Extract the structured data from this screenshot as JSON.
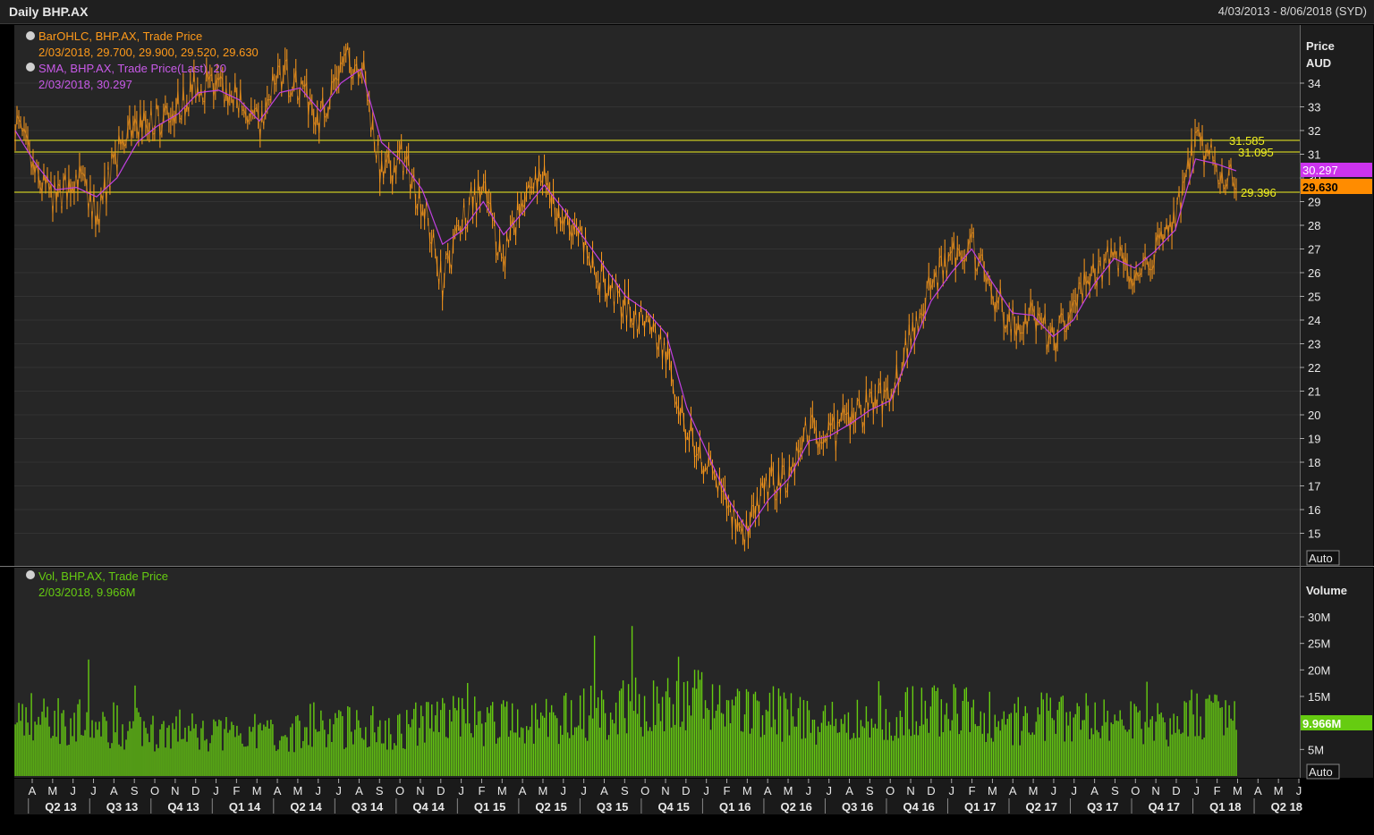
{
  "header": {
    "title": "Daily BHP.AX",
    "date_range": "4/03/2013 - 8/06/2018 (SYD)"
  },
  "colors": {
    "price": "#ff9a1a",
    "sma": "#c040e0",
    "volume": "#66cc11",
    "level": "#f0f020"
  },
  "legend": {
    "price_title": "BarOHLC, BHP.AX, Trade Price",
    "price_values": "2/03/2018, 29.700, 29.900, 29.520, 29.630",
    "sma_title": "SMA, BHP.AX, Trade Price(Last),  20",
    "sma_values": "2/03/2018, 30.297",
    "vol_title": "Vol, BHP.AX, Trade Price",
    "vol_values": "2/03/2018, 9.966M"
  },
  "price_axis": {
    "title": "Price",
    "unit": "AUD",
    "ticks": [
      "34",
      "33",
      "32",
      "31",
      "30",
      "29",
      "28",
      "27",
      "26",
      "25",
      "24",
      "23",
      "22",
      "21",
      "20",
      "19",
      "18",
      "17",
      "16",
      "15"
    ],
    "auto_label": "Auto"
  },
  "volume_axis": {
    "title": "Volume",
    "ticks": [
      "30M",
      "25M",
      "20M",
      "15M",
      "5M"
    ],
    "auto_label": "Auto"
  },
  "last_values": {
    "sma_tag": "30.297",
    "price_tag": "29.630",
    "volume_tag": "9.966M"
  },
  "levels": [
    {
      "label": "31.585",
      "value": 31.585
    },
    {
      "label": "31.095",
      "value": 31.095
    },
    {
      "label": "29.396",
      "value": 29.396
    }
  ],
  "time_axis": {
    "months": [
      "A",
      "M",
      "J",
      "J",
      "A",
      "S",
      "O",
      "N",
      "D",
      "J",
      "F",
      "M",
      "A",
      "M",
      "J",
      "J",
      "A",
      "S",
      "O",
      "N",
      "D",
      "J",
      "F",
      "M",
      "A",
      "M",
      "J",
      "J",
      "A",
      "S",
      "O",
      "N",
      "D",
      "J",
      "F",
      "M",
      "A",
      "M",
      "J",
      "J",
      "A",
      "S",
      "O",
      "N",
      "D",
      "J",
      "F",
      "M",
      "A",
      "M",
      "J",
      "J",
      "A",
      "S",
      "O",
      "N",
      "D",
      "J",
      "F",
      "M",
      "A",
      "M",
      "J"
    ],
    "quarters": [
      "Q2 13",
      "Q3 13",
      "Q4 13",
      "Q1 14",
      "Q2 14",
      "Q3 14",
      "Q4 14",
      "Q1 15",
      "Q2 15",
      "Q3 15",
      "Q4 15",
      "Q1 16",
      "Q2 16",
      "Q3 16",
      "Q4 16",
      "Q1 17",
      "Q2 17",
      "Q3 17",
      "Q4 17",
      "Q1 18",
      "Q2 18"
    ]
  },
  "chart_data": {
    "type": "line",
    "price_min": 15,
    "price_max": 34,
    "volume_max": 30,
    "x_months_from_start": [
      0,
      1,
      2,
      3,
      4,
      5,
      6,
      7,
      8,
      9,
      10,
      11,
      12,
      13,
      14,
      15,
      16,
      17,
      18,
      19,
      20,
      21,
      22,
      23,
      24,
      25,
      26,
      27,
      28,
      29,
      30,
      31,
      32,
      33,
      34,
      35,
      36,
      37,
      38,
      39,
      40,
      41,
      42,
      43,
      44,
      45,
      46,
      47,
      48,
      49,
      50,
      51,
      52,
      53,
      54,
      55,
      56,
      57,
      58,
      59,
      60
    ],
    "series": [
      {
        "name": "BarOHLC, BHP.AX, Trade Price",
        "values": [
          32.5,
          30.0,
          29.0,
          30.2,
          28.4,
          31.0,
          32.3,
          32.5,
          33.0,
          34.0,
          33.8,
          33.2,
          32.0,
          34.5,
          33.7,
          32.5,
          34.8,
          35.0,
          30.0,
          30.9,
          29.0,
          25.5,
          28.5,
          29.5,
          26.5,
          29.5,
          30.0,
          28.0,
          27.0,
          25.5,
          24.5,
          24.0,
          22.5,
          19.5,
          18.0,
          16.0,
          15.0,
          17.0,
          17.5,
          19.5,
          19.0,
          19.8,
          20.5,
          20.8,
          23.5,
          25.5,
          26.5,
          27.3,
          25.0,
          24.0,
          24.2,
          23.0,
          24.5,
          26.0,
          27.0,
          26.0,
          27.0,
          28.0,
          31.5,
          30.5,
          29.63
        ]
      },
      {
        "name": "SMA, BHP.AX, Trade Price(Last),  20",
        "values": [
          32.0,
          30.6,
          29.5,
          29.6,
          29.2,
          30.0,
          31.5,
          32.2,
          32.7,
          33.6,
          33.7,
          33.3,
          32.4,
          33.6,
          33.8,
          32.8,
          34.0,
          34.6,
          31.5,
          30.7,
          29.5,
          27.2,
          27.8,
          29.0,
          27.6,
          28.6,
          29.7,
          28.6,
          27.4,
          26.2,
          25.0,
          24.4,
          23.4,
          20.3,
          18.4,
          16.5,
          15.1,
          16.4,
          17.3,
          18.9,
          19.1,
          19.6,
          20.2,
          20.6,
          22.7,
          24.8,
          26.0,
          27.0,
          25.6,
          24.3,
          24.2,
          23.3,
          24.0,
          25.5,
          26.6,
          26.2,
          26.9,
          27.8,
          30.8,
          30.6,
          30.297
        ]
      },
      {
        "name": "Vol, BHP.AX, Trade Price",
        "values": [
          12,
          11,
          11,
          10,
          10,
          9,
          9,
          8,
          9,
          8,
          8,
          9,
          8,
          8,
          8,
          9,
          9,
          10,
          9,
          9,
          10,
          11,
          11,
          10,
          10,
          9,
          10,
          11,
          12,
          12,
          13,
          13,
          13,
          14,
          14,
          13,
          12,
          12,
          11,
          11,
          10,
          10,
          11,
          11,
          12,
          13,
          12,
          12,
          11,
          10,
          11,
          11,
          10,
          10,
          10,
          10,
          10,
          9,
          12,
          11,
          9.966
        ]
      }
    ]
  }
}
